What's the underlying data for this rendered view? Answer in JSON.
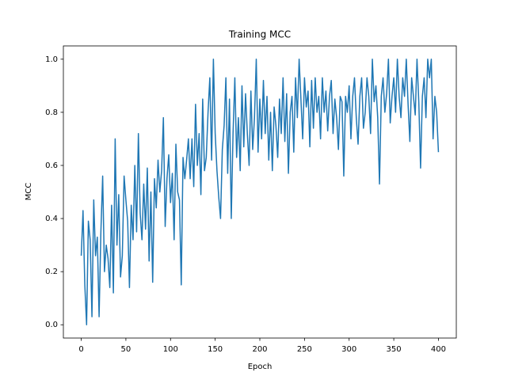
{
  "chart_data": {
    "type": "line",
    "title": "Training MCC",
    "x_label": "Epoch",
    "y_label": "MCC",
    "color": "#1f77b4",
    "x": [
      0,
      2,
      4,
      6,
      8,
      10,
      12,
      14,
      16,
      18,
      20,
      22,
      24,
      26,
      28,
      30,
      32,
      34,
      36,
      38,
      40,
      42,
      44,
      46,
      48,
      50,
      52,
      54,
      56,
      58,
      60,
      62,
      64,
      66,
      68,
      70,
      72,
      74,
      76,
      78,
      80,
      82,
      84,
      86,
      88,
      90,
      92,
      94,
      96,
      98,
      100,
      102,
      104,
      106,
      108,
      110,
      112,
      114,
      116,
      118,
      120,
      122,
      124,
      126,
      128,
      130,
      132,
      134,
      136,
      138,
      140,
      142,
      144,
      146,
      148,
      150,
      152,
      154,
      156,
      158,
      160,
      162,
      164,
      166,
      168,
      170,
      172,
      174,
      176,
      178,
      180,
      182,
      184,
      186,
      188,
      190,
      192,
      194,
      196,
      198,
      200,
      202,
      204,
      206,
      208,
      210,
      212,
      214,
      216,
      218,
      220,
      222,
      224,
      226,
      228,
      230,
      232,
      234,
      236,
      238,
      240,
      242,
      244,
      246,
      248,
      250,
      252,
      254,
      256,
      258,
      260,
      262,
      264,
      266,
      268,
      270,
      272,
      274,
      276,
      278,
      280,
      282,
      284,
      286,
      288,
      290,
      292,
      294,
      296,
      298,
      300,
      302,
      304,
      306,
      308,
      310,
      312,
      314,
      316,
      318,
      320,
      322,
      324,
      326,
      328,
      330,
      332,
      334,
      336,
      338,
      340,
      342,
      344,
      346,
      348,
      350,
      352,
      354,
      356,
      358,
      360,
      362,
      364,
      366,
      368,
      370,
      372,
      374,
      376,
      378,
      380,
      382,
      384,
      386,
      388,
      390,
      392,
      394,
      396,
      398,
      400
    ],
    "values": [
      0.26,
      0.43,
      0.15,
      0.0,
      0.39,
      0.32,
      0.03,
      0.47,
      0.26,
      0.33,
      0.03,
      0.35,
      0.56,
      0.2,
      0.3,
      0.25,
      0.14,
      0.45,
      0.12,
      0.7,
      0.3,
      0.49,
      0.18,
      0.26,
      0.56,
      0.47,
      0.39,
      0.14,
      0.45,
      0.32,
      0.6,
      0.35,
      0.72,
      0.42,
      0.32,
      0.53,
      0.36,
      0.59,
      0.24,
      0.5,
      0.16,
      0.55,
      0.44,
      0.62,
      0.5,
      0.58,
      0.78,
      0.37,
      0.55,
      0.64,
      0.46,
      0.57,
      0.32,
      0.68,
      0.5,
      0.47,
      0.15,
      0.63,
      0.55,
      0.62,
      0.7,
      0.55,
      0.7,
      0.52,
      0.83,
      0.6,
      0.72,
      0.49,
      0.85,
      0.58,
      0.63,
      0.8,
      0.93,
      0.62,
      1.0,
      0.72,
      0.58,
      0.48,
      0.4,
      0.66,
      0.75,
      0.93,
      0.57,
      0.85,
      0.4,
      0.72,
      0.93,
      0.63,
      0.78,
      0.58,
      0.9,
      0.67,
      0.87,
      0.72,
      0.6,
      0.88,
      0.66,
      0.78,
      1.0,
      0.65,
      0.85,
      0.7,
      0.92,
      0.72,
      0.86,
      0.62,
      0.8,
      0.58,
      0.82,
      0.75,
      0.63,
      0.85,
      0.72,
      0.93,
      0.69,
      0.87,
      0.57,
      0.8,
      0.86,
      0.65,
      0.93,
      0.78,
      1.0,
      0.85,
      0.7,
      0.93,
      0.82,
      0.88,
      0.67,
      0.92,
      0.74,
      0.93,
      0.8,
      0.86,
      0.7,
      0.93,
      0.8,
      0.88,
      0.73,
      0.86,
      0.92,
      0.72,
      0.85,
      0.78,
      0.66,
      0.86,
      0.84,
      0.56,
      0.86,
      0.8,
      0.9,
      0.7,
      0.86,
      0.93,
      0.78,
      0.68,
      0.86,
      0.93,
      0.74,
      0.8,
      0.93,
      0.86,
      0.72,
      1.0,
      0.84,
      0.9,
      0.78,
      0.53,
      0.86,
      0.93,
      0.8,
      0.87,
      1.0,
      0.76,
      0.86,
      0.93,
      0.8,
      1.0,
      0.86,
      0.78,
      0.93,
      0.86,
      1.0,
      0.83,
      0.69,
      0.93,
      0.86,
      0.79,
      1.0,
      0.84,
      0.59,
      0.86,
      0.93,
      0.78,
      1.0,
      0.93,
      1.0,
      0.7,
      0.86,
      0.8,
      0.65
    ],
    "xlim": [
      -20,
      420
    ],
    "xticks": [
      0,
      50,
      100,
      150,
      200,
      250,
      300,
      350,
      400
    ],
    "ylim": [
      -0.05,
      1.05
    ],
    "yticks": [
      {
        "value": 0,
        "label": "0.0"
      },
      0.2,
      0.4,
      0.6,
      0.8,
      {
        "value": 1,
        "label": "1.0"
      }
    ]
  }
}
